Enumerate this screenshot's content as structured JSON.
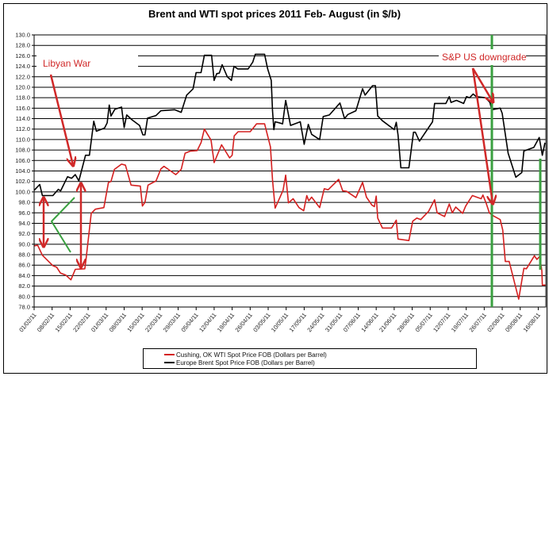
{
  "chart_data": {
    "type": "line",
    "title": "Brent and WTI spot prices 2011 Feb- August (in $/b)",
    "xlabel": "",
    "ylabel": "",
    "x_unit": "days since 01/02/11",
    "xlim": [
      0,
      199
    ],
    "ylim": [
      78,
      130
    ],
    "y_ticks": [
      "78.0",
      "80.0",
      "82.0",
      "84.0",
      "86.0",
      "88.0",
      "90.0",
      "92.0",
      "94.0",
      "96.0",
      "98.0",
      "100.0",
      "102.0",
      "104.0",
      "106.0",
      "108.0",
      "110.0",
      "112.0",
      "114.0",
      "116.0",
      "118.0",
      "120.0",
      "122.0",
      "124.0",
      "126.0",
      "128.0",
      "130.0"
    ],
    "x_tick_labels": [
      "01/02/11",
      "08/02/11",
      "15/02/11",
      "22/02/11",
      "01/03/11",
      "08/03/11",
      "15/03/11",
      "22/03/11",
      "29/03/11",
      "05/04/11",
      "12/04/11",
      "19/04/11",
      "26/04/11",
      "03/05/11",
      "10/05/11",
      "17/05/11",
      "24/05/11",
      "31/05/11",
      "07/06/11",
      "14/06/11",
      "21/06/11",
      "28/06/11",
      "05/07/11",
      "12/07/11",
      "19/07/11",
      "26/07/11",
      "02/08/11",
      "09/08/11",
      "16/08/11"
    ],
    "grid": true,
    "legend_position": "bottom",
    "series": [
      {
        "name": "Cushing, OK WTI Spot Price FOB (Dollars per Barrel)",
        "color": "#d42020",
        "points": [
          [
            0,
            89.7
          ],
          [
            1.4,
            89.8
          ],
          [
            3.2,
            87.9
          ],
          [
            7.3,
            85.9
          ],
          [
            8.8,
            85.6
          ],
          [
            10.2,
            84.5
          ],
          [
            12.3,
            84.1
          ],
          [
            14.3,
            83.2
          ],
          [
            16,
            85.2
          ],
          [
            19.7,
            85.3
          ],
          [
            20.2,
            87.2
          ],
          [
            22.2,
            95.9
          ],
          [
            23.8,
            96.7
          ],
          [
            27.1,
            97
          ],
          [
            28.9,
            101.8
          ],
          [
            29.9,
            102
          ],
          [
            31.2,
            104.3
          ],
          [
            34,
            105.3
          ],
          [
            35.5,
            105.1
          ],
          [
            37.7,
            101.3
          ],
          [
            41.3,
            101.1
          ],
          [
            42.1,
            97.3
          ],
          [
            43.1,
            98
          ],
          [
            44.3,
            101.3
          ],
          [
            47.4,
            102.1
          ],
          [
            49.3,
            104.4
          ],
          [
            50.5,
            104.9
          ],
          [
            55.1,
            103.3
          ],
          [
            57.2,
            104.3
          ],
          [
            58.7,
            107.4
          ],
          [
            60.8,
            107.8
          ],
          [
            63.4,
            107.9
          ],
          [
            64.9,
            109.4
          ],
          [
            66.2,
            112
          ],
          [
            68.8,
            109.9
          ],
          [
            70,
            105.6
          ],
          [
            72.9,
            109
          ],
          [
            76,
            106.5
          ],
          [
            77,
            107
          ],
          [
            77.8,
            110.7
          ],
          [
            79.3,
            111.5
          ],
          [
            84,
            111.5
          ],
          [
            85,
            112.1
          ],
          [
            86.5,
            113
          ],
          [
            89.6,
            113
          ],
          [
            91.9,
            108.6
          ],
          [
            92.7,
            102.3
          ],
          [
            93.7,
            96.9
          ],
          [
            96.8,
            100.3
          ],
          [
            97.8,
            103.2
          ],
          [
            98.9,
            97.9
          ],
          [
            100.7,
            98.7
          ],
          [
            103,
            97
          ],
          [
            104.8,
            96.4
          ],
          [
            106,
            99.3
          ],
          [
            106.8,
            98.3
          ],
          [
            107.9,
            99
          ],
          [
            111,
            97
          ],
          [
            112.8,
            100.6
          ],
          [
            114.3,
            100.4
          ],
          [
            118.4,
            102.4
          ],
          [
            120,
            100.2
          ],
          [
            121.5,
            100.1
          ],
          [
            125.1,
            98.9
          ],
          [
            127.7,
            101.8
          ],
          [
            129.2,
            99
          ],
          [
            131.3,
            97.5
          ],
          [
            132.3,
            97.2
          ],
          [
            133,
            99.2
          ],
          [
            133.6,
            95
          ],
          [
            135.4,
            93.1
          ],
          [
            139,
            93.1
          ],
          [
            140.8,
            94.6
          ],
          [
            141.5,
            91
          ],
          [
            145.7,
            90.7
          ],
          [
            147.2,
            94.4
          ],
          [
            148.8,
            95
          ],
          [
            150.3,
            94.7
          ],
          [
            153.4,
            96.3
          ],
          [
            155.7,
            98.5
          ],
          [
            156.7,
            96
          ],
          [
            159.6,
            95.3
          ],
          [
            161.4,
            97.7
          ],
          [
            162.6,
            96
          ],
          [
            163.9,
            97.1
          ],
          [
            166.6,
            95.9
          ],
          [
            167.8,
            97.3
          ],
          [
            170.4,
            99.3
          ],
          [
            173.8,
            98.7
          ],
          [
            174.5,
            99.4
          ],
          [
            175.8,
            97.8
          ],
          [
            177,
            96
          ],
          [
            178.6,
            95.4
          ],
          [
            181.2,
            94.7
          ],
          [
            182.2,
            92.7
          ],
          [
            183.2,
            86.7
          ],
          [
            184.7,
            86.7
          ],
          [
            188.4,
            79.5
          ],
          [
            190.4,
            85.4
          ],
          [
            191.4,
            85.3
          ],
          [
            194.5,
            87.8
          ],
          [
            195.5,
            87.1
          ],
          [
            196.6,
            87.7
          ],
          [
            197.4,
            84.9
          ],
          [
            197.6,
            82.2
          ],
          [
            198.9,
            82.2
          ]
        ]
      },
      {
        "name": "Europe Brent Spot Price FOB (Dollars per Barrel)",
        "color": "#000000",
        "points": [
          [
            0,
            100.3
          ],
          [
            2.2,
            101.4
          ],
          [
            3.2,
            99.3
          ],
          [
            7.3,
            99.3
          ],
          [
            9.4,
            100.5
          ],
          [
            10.3,
            100.2
          ],
          [
            13,
            102.9
          ],
          [
            14.6,
            102.6
          ],
          [
            16,
            103.3
          ],
          [
            17.4,
            102.1
          ],
          [
            20,
            107
          ],
          [
            21.5,
            107
          ],
          [
            23.2,
            113.5
          ],
          [
            24.2,
            111.6
          ],
          [
            27.4,
            112.2
          ],
          [
            28.4,
            113.2
          ],
          [
            29.2,
            116.6
          ],
          [
            29.9,
            114.5
          ],
          [
            31.4,
            115.8
          ],
          [
            34,
            116.2
          ],
          [
            35,
            112.3
          ],
          [
            36,
            114.7
          ],
          [
            38,
            113.8
          ],
          [
            41,
            112.7
          ],
          [
            42.3,
            110.9
          ],
          [
            43.1,
            110.9
          ],
          [
            44.1,
            114.1
          ],
          [
            47.4,
            114.6
          ],
          [
            49.3,
            115.5
          ],
          [
            54.6,
            115.7
          ],
          [
            57.2,
            115.2
          ],
          [
            59.3,
            118.5
          ],
          [
            61.8,
            119.7
          ],
          [
            63,
            122.8
          ],
          [
            64.9,
            122.8
          ],
          [
            66.2,
            126.1
          ],
          [
            69,
            126.1
          ],
          [
            70,
            121.3
          ],
          [
            71,
            122.6
          ],
          [
            72,
            122.7
          ],
          [
            73.1,
            124.3
          ],
          [
            75.1,
            122
          ],
          [
            76.7,
            121.3
          ],
          [
            77.7,
            124
          ],
          [
            79.2,
            123.5
          ],
          [
            83.2,
            123.5
          ],
          [
            85,
            124.8
          ],
          [
            86,
            126.3
          ],
          [
            89.6,
            126.3
          ],
          [
            90.8,
            123.5
          ],
          [
            92.2,
            121.3
          ],
          [
            92.7,
            115.5
          ],
          [
            93.2,
            111.9
          ],
          [
            93.7,
            113.4
          ],
          [
            95.3,
            113.2
          ],
          [
            96.6,
            113
          ],
          [
            97.8,
            117.5
          ],
          [
            99.7,
            112.7
          ],
          [
            103.5,
            113.4
          ],
          [
            105,
            109.1
          ],
          [
            106.6,
            112.9
          ],
          [
            107.9,
            111
          ],
          [
            111,
            110
          ],
          [
            112.4,
            114.4
          ],
          [
            114.8,
            114.7
          ],
          [
            118.9,
            117
          ],
          [
            120.7,
            114
          ],
          [
            122,
            114.8
          ],
          [
            125.1,
            115.5
          ],
          [
            127.7,
            119.7
          ],
          [
            128.7,
            118.5
          ],
          [
            131.6,
            120.3
          ],
          [
            132.7,
            120.3
          ],
          [
            133.6,
            114.5
          ],
          [
            135.4,
            113.6
          ],
          [
            140,
            111.9
          ],
          [
            140.8,
            113.3
          ],
          [
            141.5,
            110.9
          ],
          [
            142.6,
            104.6
          ],
          [
            145.7,
            104.6
          ],
          [
            147.5,
            111.4
          ],
          [
            148.2,
            111.4
          ],
          [
            149.8,
            109.7
          ],
          [
            154.9,
            113.4
          ],
          [
            155.7,
            116.9
          ],
          [
            160.1,
            116.9
          ],
          [
            161.4,
            118.2
          ],
          [
            162.1,
            117.1
          ],
          [
            164.2,
            117.5
          ],
          [
            167,
            116.9
          ],
          [
            168.1,
            118.2
          ],
          [
            169.3,
            118
          ],
          [
            170.7,
            118.7
          ],
          [
            171.9,
            118.2
          ],
          [
            175.5,
            118
          ],
          [
            177.2,
            117.1
          ],
          [
            177.9,
            115.7
          ],
          [
            181.2,
            116
          ],
          [
            182,
            115
          ],
          [
            184.3,
            107.4
          ],
          [
            187.3,
            102.8
          ],
          [
            189.6,
            103.7
          ],
          [
            190.4,
            107.8
          ],
          [
            194.3,
            108.5
          ],
          [
            196.4,
            110.4
          ],
          [
            197.6,
            107
          ],
          [
            198.6,
            109.4
          ]
        ]
      }
    ],
    "annotations": [
      {
        "text": "Libyan War",
        "color": "#d02828"
      },
      {
        "text": "S&P US downgrade",
        "color": "#d02828"
      }
    ]
  }
}
